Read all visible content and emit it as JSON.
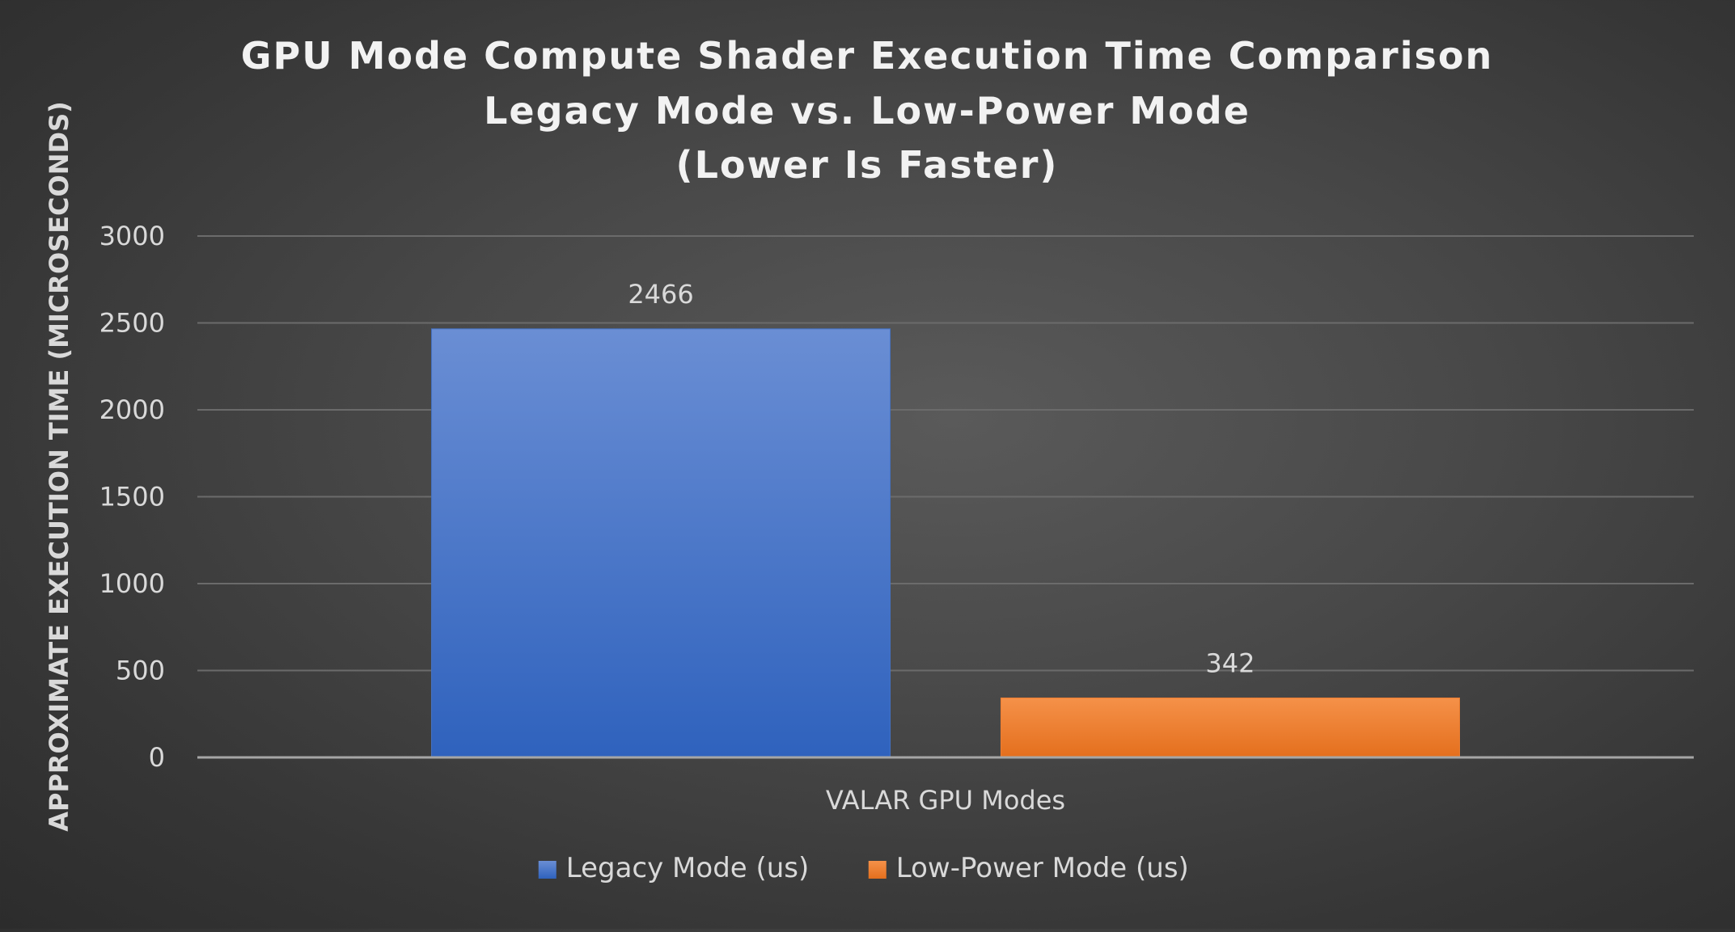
{
  "chart_data": {
    "type": "bar",
    "title_lines": [
      "GPU Mode Compute Shader Execution Time Comparison",
      "Legacy Mode vs. Low-Power Mode",
      "(Lower Is Faster)"
    ],
    "categories": [
      "VALAR GPU Modes"
    ],
    "series": [
      {
        "name": "Legacy Mode (us)",
        "values": [
          2466
        ],
        "color": "#4472c4"
      },
      {
        "name": "Low-Power Mode (us)",
        "values": [
          342
        ],
        "color": "#ed7d31"
      }
    ],
    "xlabel": "VALAR GPU Modes",
    "ylabel": "APPROXIMATE EXECUTION TIME (MICROSECONDS)",
    "ylim": [
      0,
      3000
    ],
    "yticks": [
      0,
      500,
      1000,
      1500,
      2000,
      2500,
      3000
    ],
    "grid": true,
    "legend_position": "bottom"
  }
}
